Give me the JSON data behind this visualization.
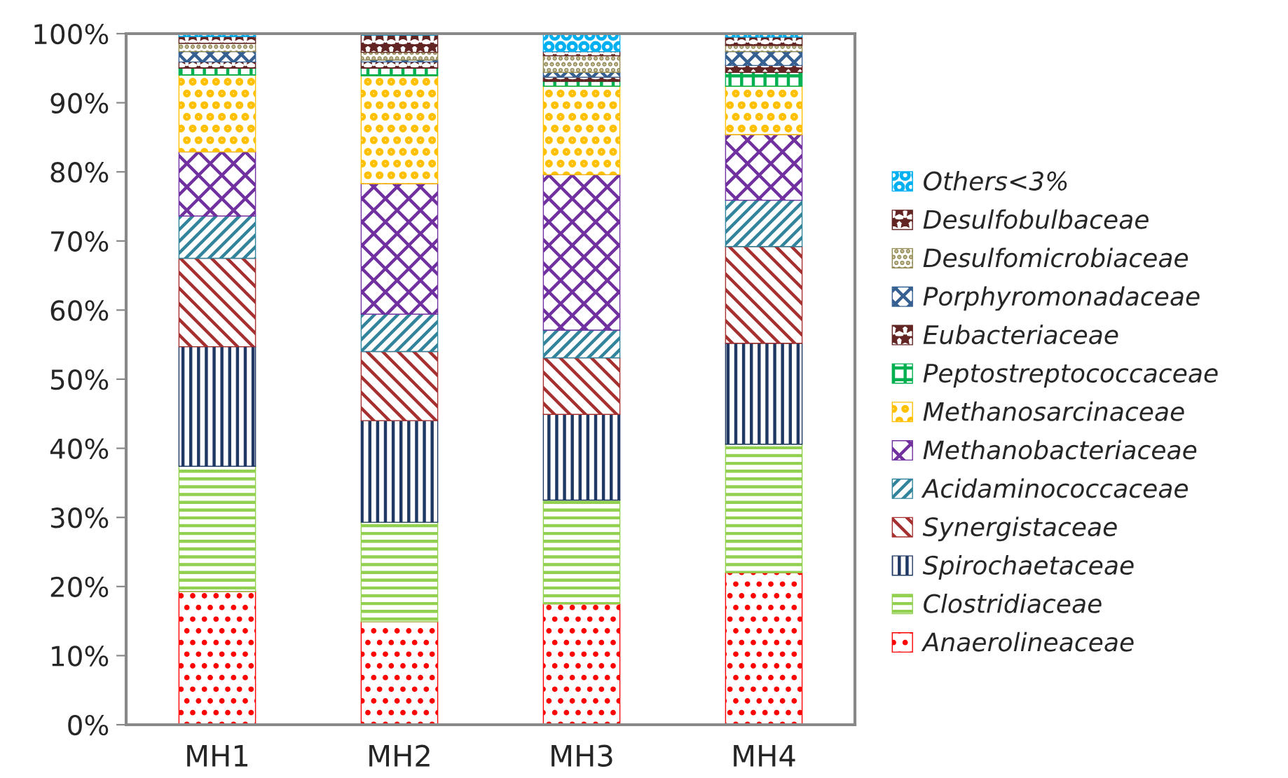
{
  "chart_data": {
    "type": "bar",
    "stacked": true,
    "categories": [
      "MH1",
      "MH2",
      "MH3",
      "MH4"
    ],
    "ylim": [
      0,
      100
    ],
    "yticks": [
      {
        "value": 0,
        "label": "0%"
      },
      {
        "value": 10,
        "label": "10%"
      },
      {
        "value": 20,
        "label": "20%"
      },
      {
        "value": 30,
        "label": "30%"
      },
      {
        "value": 40,
        "label": "40%"
      },
      {
        "value": 50,
        "label": "50%"
      },
      {
        "value": 60,
        "label": "60%"
      },
      {
        "value": 70,
        "label": "70%"
      },
      {
        "value": 80,
        "label": "80%"
      },
      {
        "value": 90,
        "label": "90%"
      },
      {
        "value": 100,
        "label": "100%"
      }
    ],
    "grid": false,
    "legend": "right",
    "series": [
      {
        "name": "Anaerolineaceae",
        "color": "#ff0000",
        "values": [
          19.3,
          14.9,
          17.5,
          22.0
        ]
      },
      {
        "name": "Clostridiaceae",
        "color": "#92d050",
        "values": [
          18.1,
          14.4,
          15.0,
          18.6
        ]
      },
      {
        "name": "Spirochaetaceae",
        "color": "#1f3864",
        "values": [
          17.3,
          14.7,
          12.4,
          14.6
        ]
      },
      {
        "name": "Synergistaceae",
        "color": "#a5302f",
        "values": [
          12.8,
          10.0,
          8.2,
          14.0
        ]
      },
      {
        "name": "Acidaminococcaceae",
        "color": "#31849b",
        "values": [
          6.1,
          5.4,
          4.0,
          6.7
        ]
      },
      {
        "name": "Methanobacteriaceae",
        "color": "#7030a0",
        "values": [
          9.3,
          18.9,
          22.5,
          9.5
        ]
      },
      {
        "name": "Methanosarcinaceae",
        "color": "#ffc000",
        "values": [
          11.1,
          15.6,
          12.8,
          7.0
        ]
      },
      {
        "name": "Peptostreptococcaceae",
        "color": "#00b050",
        "values": [
          1.0,
          1.1,
          0.7,
          2.0
        ]
      },
      {
        "name": "Eubacteriaceae",
        "color": "#632523",
        "values": [
          0.9,
          0.9,
          0.6,
          1.0
        ]
      },
      {
        "name": "Porphyromonadaceae",
        "color": "#366092",
        "values": [
          1.5,
          0.3,
          0.7,
          2.0
        ]
      },
      {
        "name": "Desulfomicrobiaceae",
        "color": "#948a54",
        "values": [
          1.2,
          1.1,
          2.4,
          0.9
        ]
      },
      {
        "name": "Desulfobulbaceae",
        "color": "#632523",
        "values": [
          1.0,
          2.5,
          0.6,
          1.2
        ]
      },
      {
        "name": "Others<3%",
        "color": "#00b0f0",
        "values": [
          0.4,
          null,
          2.6,
          0.5
        ]
      }
    ]
  }
}
